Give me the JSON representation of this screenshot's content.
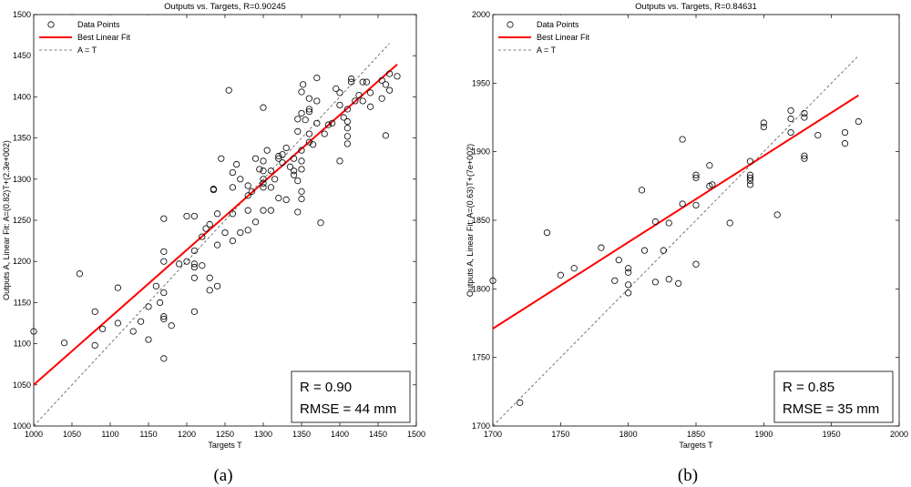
{
  "chart_data": [
    {
      "type": "scatter",
      "title": "Outputs vs. Targets, R=0.90245",
      "xlabel": "Targets T",
      "ylabel": "Outputs A,  Linear Fit: A=(0.82)T+(2.3e+002)",
      "xlim": [
        1000,
        1500
      ],
      "ylim": [
        1000,
        1500
      ],
      "xticks": [
        1000,
        1050,
        1100,
        1150,
        1200,
        1250,
        1300,
        1350,
        1400,
        1450,
        1500
      ],
      "yticks": [
        1000,
        1050,
        1100,
        1150,
        1200,
        1250,
        1300,
        1350,
        1400,
        1450,
        1500
      ],
      "legend": {
        "position": "top-left",
        "entries": [
          "Data Points",
          "Best Linear Fit",
          "A = T"
        ]
      },
      "fit": {
        "slope": 0.82,
        "intercept": 230,
        "x_range": [
          1000,
          1475
        ]
      },
      "identity_range": [
        1000,
        1465
      ],
      "stats": [
        "R = 0.90",
        "RMSE = 44 mm"
      ],
      "caption": "(a)",
      "points": [
        [
          1000,
          1115
        ],
        [
          1040,
          1101
        ],
        [
          1060,
          1185
        ],
        [
          1080,
          1139
        ],
        [
          1080,
          1098
        ],
        [
          1090,
          1118
        ],
        [
          1110,
          1168
        ],
        [
          1110,
          1125
        ],
        [
          1130,
          1115
        ],
        [
          1140,
          1127
        ],
        [
          1150,
          1145
        ],
        [
          1150,
          1105
        ],
        [
          1160,
          1170
        ],
        [
          1165,
          1150
        ],
        [
          1170,
          1252
        ],
        [
          1170,
          1212
        ],
        [
          1170,
          1200
        ],
        [
          1170,
          1162
        ],
        [
          1170,
          1133
        ],
        [
          1170,
          1130
        ],
        [
          1170,
          1082
        ],
        [
          1180,
          1122
        ],
        [
          1190,
          1197
        ],
        [
          1200,
          1255
        ],
        [
          1200,
          1200
        ],
        [
          1210,
          1255
        ],
        [
          1210,
          1213
        ],
        [
          1210,
          1197
        ],
        [
          1210,
          1193
        ],
        [
          1210,
          1180
        ],
        [
          1210,
          1139
        ],
        [
          1220,
          1230
        ],
        [
          1220,
          1195
        ],
        [
          1225,
          1240
        ],
        [
          1230,
          1245
        ],
        [
          1230,
          1180
        ],
        [
          1230,
          1165
        ],
        [
          1235,
          1288
        ],
        [
          1235,
          1287
        ],
        [
          1240,
          1258
        ],
        [
          1240,
          1220
        ],
        [
          1240,
          1170
        ],
        [
          1245,
          1325
        ],
        [
          1250,
          1235
        ],
        [
          1255,
          1408
        ],
        [
          1260,
          1308
        ],
        [
          1260,
          1290
        ],
        [
          1260,
          1258
        ],
        [
          1260,
          1225
        ],
        [
          1265,
          1318
        ],
        [
          1270,
          1300
        ],
        [
          1270,
          1235
        ],
        [
          1280,
          1280
        ],
        [
          1280,
          1292
        ],
        [
          1280,
          1262
        ],
        [
          1280,
          1238
        ],
        [
          1285,
          1285
        ],
        [
          1290,
          1325
        ],
        [
          1290,
          1248
        ],
        [
          1295,
          1312
        ],
        [
          1300,
          1387
        ],
        [
          1300,
          1322
        ],
        [
          1300,
          1310
        ],
        [
          1300,
          1300
        ],
        [
          1300,
          1295
        ],
        [
          1300,
          1290
        ],
        [
          1300,
          1262
        ],
        [
          1305,
          1335
        ],
        [
          1310,
          1310
        ],
        [
          1310,
          1290
        ],
        [
          1310,
          1262
        ],
        [
          1315,
          1300
        ],
        [
          1320,
          1325
        ],
        [
          1320,
          1328
        ],
        [
          1320,
          1277
        ],
        [
          1325,
          1320
        ],
        [
          1325,
          1330
        ],
        [
          1330,
          1338
        ],
        [
          1330,
          1275
        ],
        [
          1335,
          1315
        ],
        [
          1340,
          1325
        ],
        [
          1340,
          1310
        ],
        [
          1340,
          1305
        ],
        [
          1345,
          1373
        ],
        [
          1345,
          1358
        ],
        [
          1345,
          1298
        ],
        [
          1345,
          1260
        ],
        [
          1350,
          1406
        ],
        [
          1350,
          1380
        ],
        [
          1350,
          1335
        ],
        [
          1350,
          1322
        ],
        [
          1350,
          1312
        ],
        [
          1350,
          1285
        ],
        [
          1350,
          1276
        ],
        [
          1352,
          1415
        ],
        [
          1355,
          1372
        ],
        [
          1360,
          1398
        ],
        [
          1360,
          1385
        ],
        [
          1360,
          1382
        ],
        [
          1360,
          1355
        ],
        [
          1360,
          1345
        ],
        [
          1365,
          1342
        ],
        [
          1370,
          1423
        ],
        [
          1370,
          1395
        ],
        [
          1370,
          1368
        ],
        [
          1375,
          1247
        ],
        [
          1380,
          1355
        ],
        [
          1385,
          1366
        ],
        [
          1390,
          1368
        ],
        [
          1395,
          1410
        ],
        [
          1400,
          1405
        ],
        [
          1400,
          1390
        ],
        [
          1400,
          1322
        ],
        [
          1405,
          1375
        ],
        [
          1410,
          1385
        ],
        [
          1410,
          1370
        ],
        [
          1410,
          1362
        ],
        [
          1410,
          1352
        ],
        [
          1410,
          1343
        ],
        [
          1415,
          1422
        ],
        [
          1415,
          1418
        ],
        [
          1420,
          1395
        ],
        [
          1425,
          1402
        ],
        [
          1430,
          1418
        ],
        [
          1430,
          1395
        ],
        [
          1435,
          1418
        ],
        [
          1440,
          1405
        ],
        [
          1440,
          1388
        ],
        [
          1455,
          1398
        ],
        [
          1455,
          1420
        ],
        [
          1460,
          1353
        ],
        [
          1460,
          1415
        ],
        [
          1465,
          1428
        ],
        [
          1465,
          1408
        ],
        [
          1475,
          1425
        ]
      ]
    },
    {
      "type": "scatter",
      "title": "Outputs vs. Targets, R=0.84631",
      "xlabel": "Targets T",
      "ylabel": "Outputs A,  Linear Fit: A=(0.63)T+(7e+002)",
      "xlim": [
        1700,
        2000
      ],
      "ylim": [
        1700,
        2000
      ],
      "xticks": [
        1700,
        1750,
        1800,
        1850,
        1900,
        1950,
        2000
      ],
      "yticks": [
        1700,
        1750,
        1800,
        1850,
        1900,
        1950,
        2000
      ],
      "legend": {
        "position": "top-left",
        "entries": [
          "Data Points",
          "Best Linear Fit",
          "A = T"
        ]
      },
      "fit": {
        "slope": 0.63,
        "intercept": 700,
        "x_range": [
          1700,
          1970
        ]
      },
      "identity_range": [
        1700,
        1970
      ],
      "stats": [
        "R = 0.85",
        "RMSE = 35 mm"
      ],
      "caption": "(b)",
      "points": [
        [
          1700,
          1806
        ],
        [
          1720,
          1717
        ],
        [
          1740,
          1841
        ],
        [
          1750,
          1810
        ],
        [
          1760,
          1815
        ],
        [
          1780,
          1830
        ],
        [
          1790,
          1806
        ],
        [
          1793,
          1821
        ],
        [
          1800,
          1815
        ],
        [
          1800,
          1812
        ],
        [
          1800,
          1803
        ],
        [
          1800,
          1797
        ],
        [
          1810,
          1872
        ],
        [
          1812,
          1828
        ],
        [
          1820,
          1849
        ],
        [
          1820,
          1805
        ],
        [
          1826,
          1828
        ],
        [
          1830,
          1848
        ],
        [
          1830,
          1807
        ],
        [
          1837,
          1804
        ],
        [
          1840,
          1909
        ],
        [
          1840,
          1862
        ],
        [
          1850,
          1883
        ],
        [
          1850,
          1881
        ],
        [
          1850,
          1861
        ],
        [
          1850,
          1818
        ],
        [
          1860,
          1890
        ],
        [
          1860,
          1875
        ],
        [
          1862,
          1876
        ],
        [
          1875,
          1848
        ],
        [
          1890,
          1893
        ],
        [
          1890,
          1883
        ],
        [
          1890,
          1881
        ],
        [
          1890,
          1879
        ],
        [
          1890,
          1876
        ],
        [
          1900,
          1921
        ],
        [
          1900,
          1918
        ],
        [
          1910,
          1854
        ],
        [
          1920,
          1930
        ],
        [
          1920,
          1924
        ],
        [
          1920,
          1914
        ],
        [
          1930,
          1928
        ],
        [
          1930,
          1925
        ],
        [
          1930,
          1897
        ],
        [
          1930,
          1895
        ],
        [
          1940,
          1912
        ],
        [
          1960,
          1914
        ],
        [
          1960,
          1906
        ],
        [
          1970,
          1922
        ]
      ]
    }
  ]
}
